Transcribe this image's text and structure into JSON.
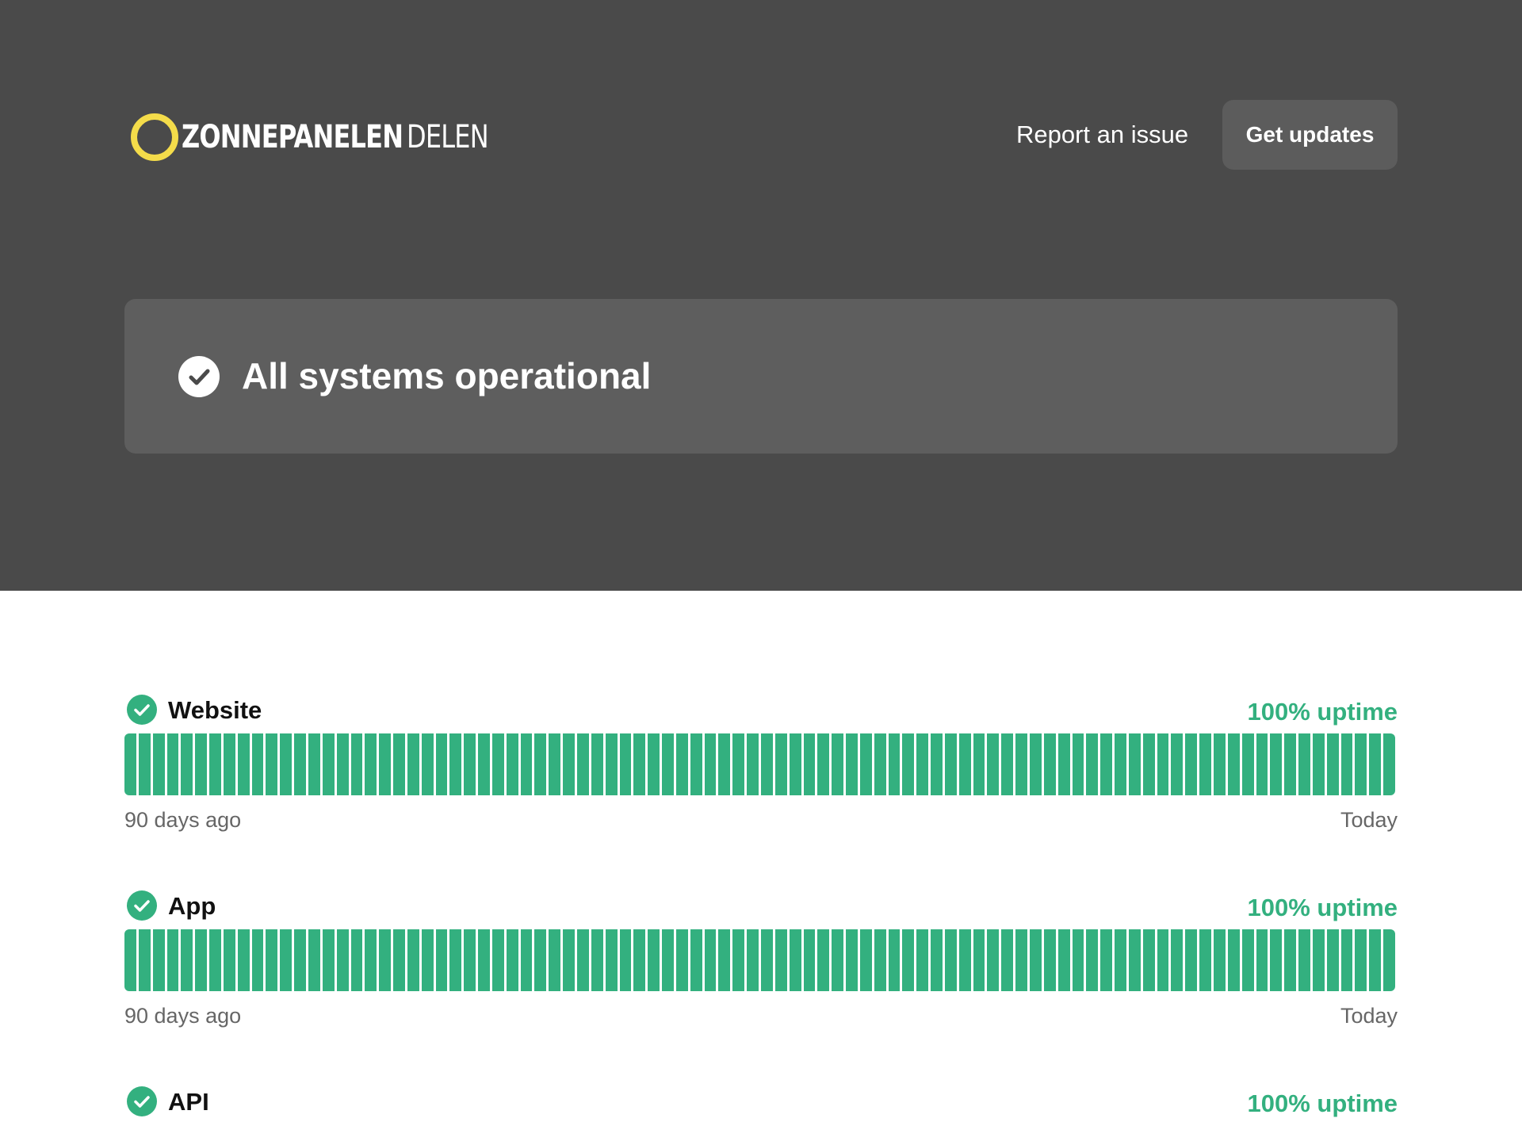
{
  "header": {
    "logo_bold": "ZONNEPANELEN",
    "logo_light": "DELEN",
    "report_link": "Report an issue",
    "updates_button": "Get updates"
  },
  "status": {
    "title": "All systems operational"
  },
  "colors": {
    "hero_bg": "#4a4a4a",
    "card_bg": "#5e5e5e",
    "button_bg": "#5c5c5c",
    "logo_ring": "#f4dc4a",
    "operational": "#33b07f"
  },
  "components": [
    {
      "name": "Website",
      "uptime": "100% uptime",
      "range_start": "90 days ago",
      "range_end": "Today",
      "bar_count": 90,
      "icon": "check-circle-icon"
    },
    {
      "name": "App",
      "uptime": "100% uptime",
      "range_start": "90 days ago",
      "range_end": "Today",
      "bar_count": 90,
      "icon": "check-circle-icon"
    },
    {
      "name": "API",
      "uptime": "100% uptime",
      "icon": "check-circle-icon"
    }
  ]
}
